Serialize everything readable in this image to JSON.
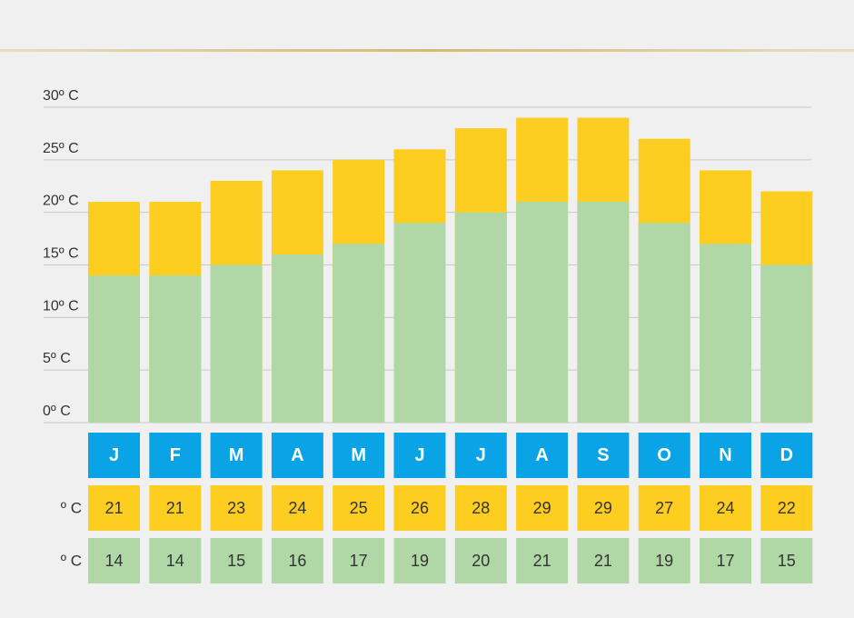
{
  "chart_data": {
    "type": "bar",
    "stacked": false,
    "categories": [
      "J",
      "F",
      "M",
      "A",
      "M",
      "J",
      "J",
      "A",
      "S",
      "O",
      "N",
      "D"
    ],
    "series": [
      {
        "values": [
          21,
          21,
          23,
          24,
          25,
          26,
          28,
          29,
          29,
          27,
          24,
          22
        ],
        "color": "#fdcd1f"
      },
      {
        "values": [
          14,
          14,
          15,
          16,
          17,
          19,
          20,
          21,
          21,
          19,
          17,
          15
        ],
        "color": "#b0d8a6"
      }
    ],
    "y_ticks": [
      0,
      5,
      10,
      15,
      20,
      25,
      30
    ],
    "y_tick_labels": [
      "0º C",
      "5º C",
      "10º C",
      "15º C",
      "20º C",
      "25º C",
      "30º C"
    ],
    "ylim": [
      0,
      30
    ],
    "grid": true,
    "row_unit_labels": [
      "º C",
      "º C"
    ],
    "colors": {
      "month_cell": "#0aa3e5",
      "max_cell": "#fdcd1f",
      "min_cell": "#b0d8a6",
      "grid": "#c8c8c8"
    }
  }
}
